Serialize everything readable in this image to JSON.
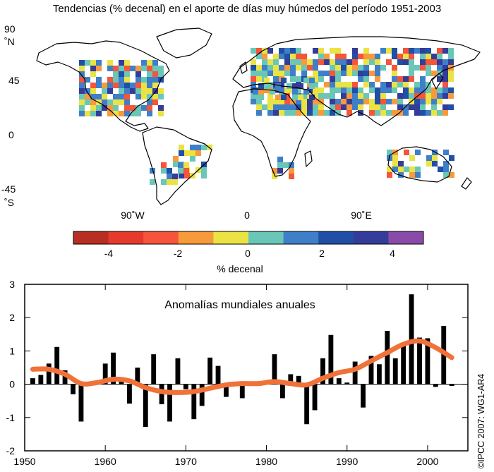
{
  "title": "Tendencias (% decenal) en el aporte de días muy húmedos del período 1951-2003",
  "map": {
    "lat_labels": [
      "90",
      "˚N",
      "45",
      "0",
      "-45",
      "˚S"
    ],
    "lon_labels": [
      "90˚W",
      "0",
      "90˚E"
    ]
  },
  "colorbar": {
    "tick_labels": [
      "-4",
      "-2",
      "0",
      "2",
      "4"
    ],
    "label": "% decenal",
    "colors": [
      "#b82e22",
      "#e63b2c",
      "#f5553a",
      "#f79a3c",
      "#ebe244",
      "#6ac7b8",
      "#3f7fc8",
      "#1f4fa6",
      "#343c99",
      "#8a4aa8"
    ]
  },
  "chart_data": {
    "type": "bar",
    "title": "Anomalías mundiales anuales",
    "xlabel": "",
    "ylabel": "",
    "xlim": [
      1950,
      2005
    ],
    "ylim": [
      -2,
      3
    ],
    "x_ticks": [
      1950,
      1960,
      1970,
      1980,
      1990,
      2000
    ],
    "y_ticks": [
      -2,
      -1,
      0,
      1,
      2,
      3
    ],
    "x": [
      1951,
      1952,
      1953,
      1954,
      1955,
      1956,
      1957,
      1958,
      1959,
      1960,
      1961,
      1962,
      1963,
      1964,
      1965,
      1966,
      1967,
      1968,
      1969,
      1970,
      1971,
      1972,
      1973,
      1974,
      1975,
      1976,
      1977,
      1978,
      1979,
      1980,
      1981,
      1982,
      1983,
      1984,
      1985,
      1986,
      1987,
      1988,
      1989,
      1990,
      1991,
      1992,
      1993,
      1994,
      1995,
      1996,
      1997,
      1998,
      1999,
      2000,
      2001,
      2002,
      2003
    ],
    "values": [
      0.18,
      0.28,
      0.62,
      1.12,
      0.42,
      -0.3,
      -1.12,
      0.05,
      0.05,
      0.62,
      0.95,
      0.1,
      -0.58,
      0.5,
      -1.28,
      0.9,
      -0.6,
      -1.12,
      0.78,
      -0.15,
      -1.05,
      -0.65,
      0.8,
      0.55,
      -0.38,
      0.05,
      -0.42,
      0.05,
      0.05,
      0.08,
      0.9,
      -0.42,
      0.3,
      0.25,
      -1.2,
      -0.78,
      0.78,
      1.48,
      0.18,
      0.05,
      0.68,
      -0.7,
      0.85,
      0.6,
      1.6,
      0.78,
      1.18,
      2.7,
      1.4,
      1.38,
      -0.08,
      1.75,
      -0.05
    ],
    "smooth": {
      "x": [
        1951,
        1953,
        1955,
        1957,
        1959,
        1961,
        1963,
        1965,
        1967,
        1969,
        1971,
        1973,
        1975,
        1977,
        1979,
        1981,
        1983,
        1985,
        1987,
        1989,
        1991,
        1993,
        1995,
        1997,
        1999,
        2001,
        2003
      ],
      "y": [
        0.45,
        0.45,
        0.3,
        0.02,
        0.05,
        0.15,
        0.1,
        -0.1,
        -0.22,
        -0.25,
        -0.22,
        -0.12,
        -0.02,
        0.02,
        0.02,
        0.08,
        0.02,
        -0.02,
        0.18,
        0.35,
        0.45,
        0.7,
        0.95,
        1.2,
        1.3,
        1.1,
        0.8
      ]
    },
    "bar_color": "#000000",
    "smooth_color": "#f07238",
    "grid": false
  },
  "watermark": "©IPCC 2007: WG1-AR4"
}
